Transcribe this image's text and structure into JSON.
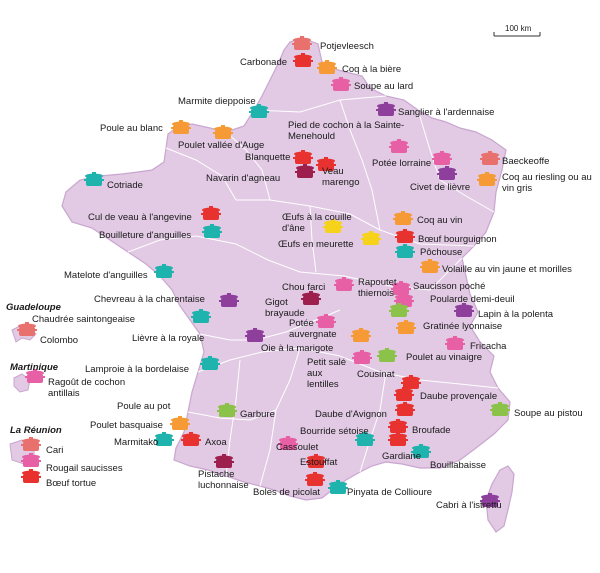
{
  "colors": {
    "land": "#e2c9e4",
    "region_border": "#ffffff",
    "coast": "#c9a6cf",
    "pot_red": "#e8322f",
    "pot_orange": "#f59a35",
    "pot_pink": "#e75fa5",
    "pot_purple": "#8e3f9c",
    "pot_teal": "#1fb3ae",
    "pot_green": "#8bc34a",
    "pot_salmon": "#e8716e",
    "pot_yellow": "#f6d21b",
    "pot_maroon": "#9c1f4d"
  },
  "scale": {
    "label": "100 km"
  },
  "side": {
    "guadeloupe": {
      "title": "Guadeloupe",
      "dish": "Colombo"
    },
    "martinique": {
      "title": "Martinique",
      "dish": "Ragoût de cochon antillais"
    },
    "reunion": {
      "title": "La Réunion",
      "dishes": [
        "Cari",
        "Rougail saucisses",
        "Bœuf tortue"
      ]
    }
  },
  "dishes": [
    {
      "name": "Potjevleesch",
      "color": "pot_salmon"
    },
    {
      "name": "Carbonade",
      "color": "pot_red"
    },
    {
      "name": "Coq à la bière",
      "color": "pot_orange"
    },
    {
      "name": "Soupe au lard",
      "color": "pot_pink"
    },
    {
      "name": "Marmite dieppoise",
      "color": "pot_teal"
    },
    {
      "name": "Sanglier à l'ardennaise",
      "color": "pot_purple"
    },
    {
      "name": "Poule au blanc",
      "color": "pot_orange"
    },
    {
      "name": "Poulet vallée d'Auge",
      "color": "pot_orange"
    },
    {
      "name": "Pied de cochon à la Sainte-Menehould",
      "color": "pot_pink"
    },
    {
      "name": "Blanquette",
      "color": "pot_red"
    },
    {
      "name": "Potée lorraine",
      "color": "pot_pink"
    },
    {
      "name": "Baeckeoffe",
      "color": "pot_salmon"
    },
    {
      "name": "Navarin d'agneau",
      "color": "pot_maroon"
    },
    {
      "name": "Veau marengo",
      "color": "pot_red"
    },
    {
      "name": "Civet de lièvre",
      "color": "pot_purple"
    },
    {
      "name": "Coq au riesling ou au vin gris",
      "color": "pot_orange"
    },
    {
      "name": "Cotriade",
      "color": "pot_teal"
    },
    {
      "name": "Cul de veau à l'angevine",
      "color": "pot_red"
    },
    {
      "name": "Œufs à la couille d'âne",
      "color": "pot_yellow"
    },
    {
      "name": "Coq au vin",
      "color": "pot_orange"
    },
    {
      "name": "Bouilleture d'anguilles",
      "color": "pot_teal"
    },
    {
      "name": "Œufs en meurette",
      "color": "pot_yellow"
    },
    {
      "name": "Bœuf bourguignon",
      "color": "pot_red"
    },
    {
      "name": "Pôchouse",
      "color": "pot_teal"
    },
    {
      "name": "Matelote d'anguilles",
      "color": "pot_teal"
    },
    {
      "name": "Volaille au vin jaune et morilles",
      "color": "pot_orange"
    },
    {
      "name": "Chou farci",
      "color": "pot_pink"
    },
    {
      "name": "Rapoutet thiernois",
      "color": "pot_pink"
    },
    {
      "name": "Saucisson poché",
      "color": "pot_pink"
    },
    {
      "name": "Chevreau à la charentaise",
      "color": "pot_purple"
    },
    {
      "name": "Gigot brayaude",
      "color": "pot_maroon"
    },
    {
      "name": "Poularde demi-deuil",
      "color": "pot_green"
    },
    {
      "name": "Chaudrée saintongeaise",
      "color": "pot_teal"
    },
    {
      "name": "Lapin à la polenta",
      "color": "pot_purple"
    },
    {
      "name": "Potée auvergnate",
      "color": "pot_pink"
    },
    {
      "name": "Gratinée lyonnaise",
      "color": "pot_orange"
    },
    {
      "name": "Lièvre à la royale",
      "color": "pot_purple"
    },
    {
      "name": "Oie à la marigote",
      "color": "pot_orange"
    },
    {
      "name": "Fricacha",
      "color": "pot_pink"
    },
    {
      "name": "Lamproie à la bordelaise",
      "color": "pot_teal"
    },
    {
      "name": "Petit salé aux lentilles",
      "color": "pot_pink"
    },
    {
      "name": "Poulet au vinaigre",
      "color": "pot_green"
    },
    {
      "name": "Cousinat",
      "color": "pot_red"
    },
    {
      "name": "Daube provençale",
      "color": "pot_red"
    },
    {
      "name": "Poule au pot",
      "color": "pot_orange"
    },
    {
      "name": "Garbure",
      "color": "pot_green"
    },
    {
      "name": "Daube d'Avignon",
      "color": "pot_red"
    },
    {
      "name": "Soupe au pistou",
      "color": "pot_green"
    },
    {
      "name": "Poulet basquaise",
      "color": "pot_orange"
    },
    {
      "name": "Bourride sétoise",
      "color": "pot_teal"
    },
    {
      "name": "Broufade",
      "color": "pot_red"
    },
    {
      "name": "Marmitako",
      "color": "pot_teal"
    },
    {
      "name": "Axoa",
      "color": "pot_red"
    },
    {
      "name": "Cassoulet",
      "color": "pot_pink"
    },
    {
      "name": "Gardiane",
      "color": "pot_red"
    },
    {
      "name": "Estouffat",
      "color": "pot_red"
    },
    {
      "name": "Bouillabaisse",
      "color": "pot_teal"
    },
    {
      "name": "Pistache luchonnaise",
      "color": "pot_maroon"
    },
    {
      "name": "Boles de picolat",
      "color": "pot_red"
    },
    {
      "name": "Pinyata de Collioure",
      "color": "pot_teal"
    },
    {
      "name": "Cabri à l'istrettu",
      "color": "pot_purple"
    }
  ]
}
